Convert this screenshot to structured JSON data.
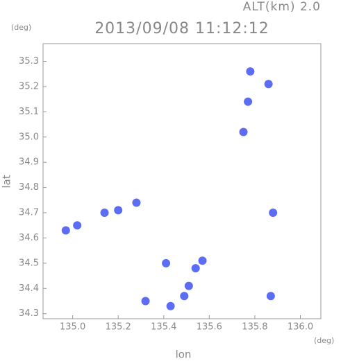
{
  "chart_data": {
    "type": "scatter",
    "subtitle": "ALT(km) 2.0",
    "title": "2013/09/08 11:12:12",
    "y_unit": "(deg)",
    "x_unit": "(deg)",
    "xlabel": "lon",
    "ylabel": "lat",
    "color": "#4a5cf2",
    "x": [
      134.97,
      135.02,
      135.14,
      135.2,
      135.28,
      135.32,
      135.43,
      135.49,
      135.51,
      135.54,
      135.57,
      135.41,
      135.78,
      135.86,
      135.77,
      135.87,
      135.88,
      135.75
    ],
    "values": [
      34.63,
      34.65,
      34.7,
      34.71,
      34.74,
      34.35,
      34.33,
      34.37,
      34.41,
      34.48,
      34.51,
      34.5,
      35.26,
      35.21,
      35.14,
      34.37,
      34.7,
      35.02
    ],
    "xlim": [
      134.87,
      136.09
    ],
    "ylim": [
      34.28,
      35.37
    ],
    "xticks": [
      {
        "value": 135.0,
        "label": "135.0"
      },
      135.2,
      135.4,
      135.6,
      135.8,
      {
        "value": 136.0,
        "label": "136.0"
      }
    ],
    "yticks": [
      34.3,
      34.4,
      34.5,
      34.6,
      34.7,
      34.8,
      34.9,
      {
        "value": 35.0,
        "label": "35.0"
      },
      35.1,
      35.2,
      35.3
    ]
  }
}
